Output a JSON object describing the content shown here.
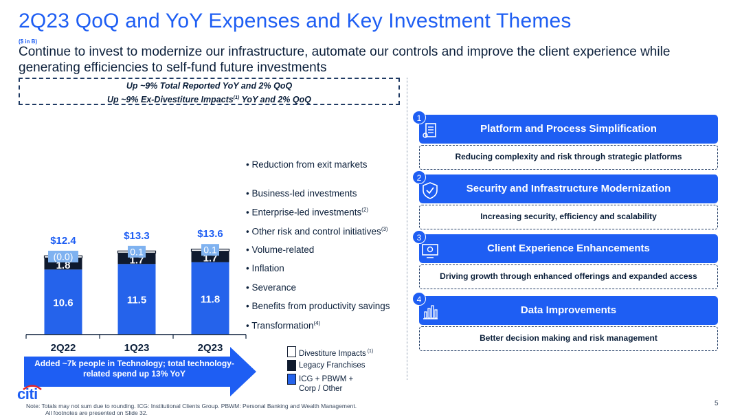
{
  "header": {
    "title": "2Q23 QoQ and YoY Expenses and Key Investment Themes",
    "units": "($ in B)",
    "subtitle": "Continue to invest to modernize our infrastructure, automate our controls and improve the client experience while generating efficiencies to self-fund future investments"
  },
  "callout": {
    "line1": "Up ~9% Total Reported YoY and 2% QoQ",
    "line2_pre": "Up ~9% Ex-Divestiture Impacts",
    "line2_sup": "(1)",
    "line2_post": " YoY and 2% QoQ"
  },
  "chart_data": {
    "type": "bar",
    "stacked": true,
    "categories": [
      "2Q22",
      "1Q23",
      "2Q23"
    ],
    "totals": [
      "$12.4",
      "$13.3",
      "$13.6"
    ],
    "series": [
      {
        "name": "ICG + PBWM + Corp / Other",
        "values": [
          10.6,
          11.5,
          11.8
        ],
        "labels": [
          "10.6",
          "11.5",
          "11.8"
        ],
        "color": "#2563eb"
      },
      {
        "name": "Legacy Franchises",
        "values": [
          1.8,
          1.7,
          1.7
        ],
        "labels": [
          "1.8",
          "1.7",
          "1.7"
        ],
        "color": "#0f1a2e"
      },
      {
        "name": "Divestiture Impacts",
        "values": [
          0.0,
          0.1,
          0.1
        ],
        "labels": [
          "(0.0)",
          "0.1",
          "0.1"
        ],
        "color": "#ffffff"
      }
    ],
    "ylim": [
      0,
      14.5
    ]
  },
  "drivers": [
    {
      "text": "• Reduction from exit markets",
      "sup": ""
    },
    {
      "text": "• Business-led investments",
      "sup": ""
    },
    {
      "text": "• Enterprise-led investments",
      "sup": "(2)"
    },
    {
      "text": "• Other risk and control initiatives",
      "sup": "(3)"
    },
    {
      "text": "• Volume-related",
      "sup": ""
    },
    {
      "text": "• Inflation",
      "sup": ""
    },
    {
      "text": "• Severance",
      "sup": ""
    },
    {
      "text": "• Benefits from productivity savings",
      "sup": ""
    },
    {
      "text": "• Transformation",
      "sup": "(4)"
    }
  ],
  "arrow_text": "Added ~7k people in Technology; total technology-related spend up 13% YoY",
  "legend": [
    {
      "label": "Divestiture Impacts",
      "sup": "(1)",
      "color": "#ffffff"
    },
    {
      "label": "Legacy Franchises",
      "sup": "",
      "color": "#0f1a2e"
    },
    {
      "label": "ICG + PBWM + Corp / Other",
      "sup": "",
      "color": "#2563eb"
    }
  ],
  "themes": [
    {
      "num": "1",
      "title": "Platform and Process Simplification",
      "desc": "Reducing complexity and risk through strategic platforms",
      "icon": "platform-icon"
    },
    {
      "num": "2",
      "title": "Security and Infrastructure Modernization",
      "desc": "Increasing security, efficiency and scalability",
      "icon": "shield-check-icon"
    },
    {
      "num": "3",
      "title": "Client Experience Enhancements",
      "desc": "Driving growth through enhanced offerings and expanded access",
      "icon": "client-screen-icon"
    },
    {
      "num": "4",
      "title": "Data Improvements",
      "desc": "Better decision making and risk management",
      "icon": "bar-chart-icon"
    }
  ],
  "footer": {
    "logo": "citi",
    "note_line1": "Note:  Totals may not sum due to rounding. ICG: Institutional Clients Group. PBWM: Personal Banking and Wealth Management.",
    "note_line2": "All footnotes are presented on Slide 32.",
    "page_number": "5"
  },
  "colors": {
    "brand_blue": "#1e5ef3",
    "navy": "#0f1a2e",
    "bar_blue": "#2563eb",
    "light_blue": "#7fb2f0"
  }
}
